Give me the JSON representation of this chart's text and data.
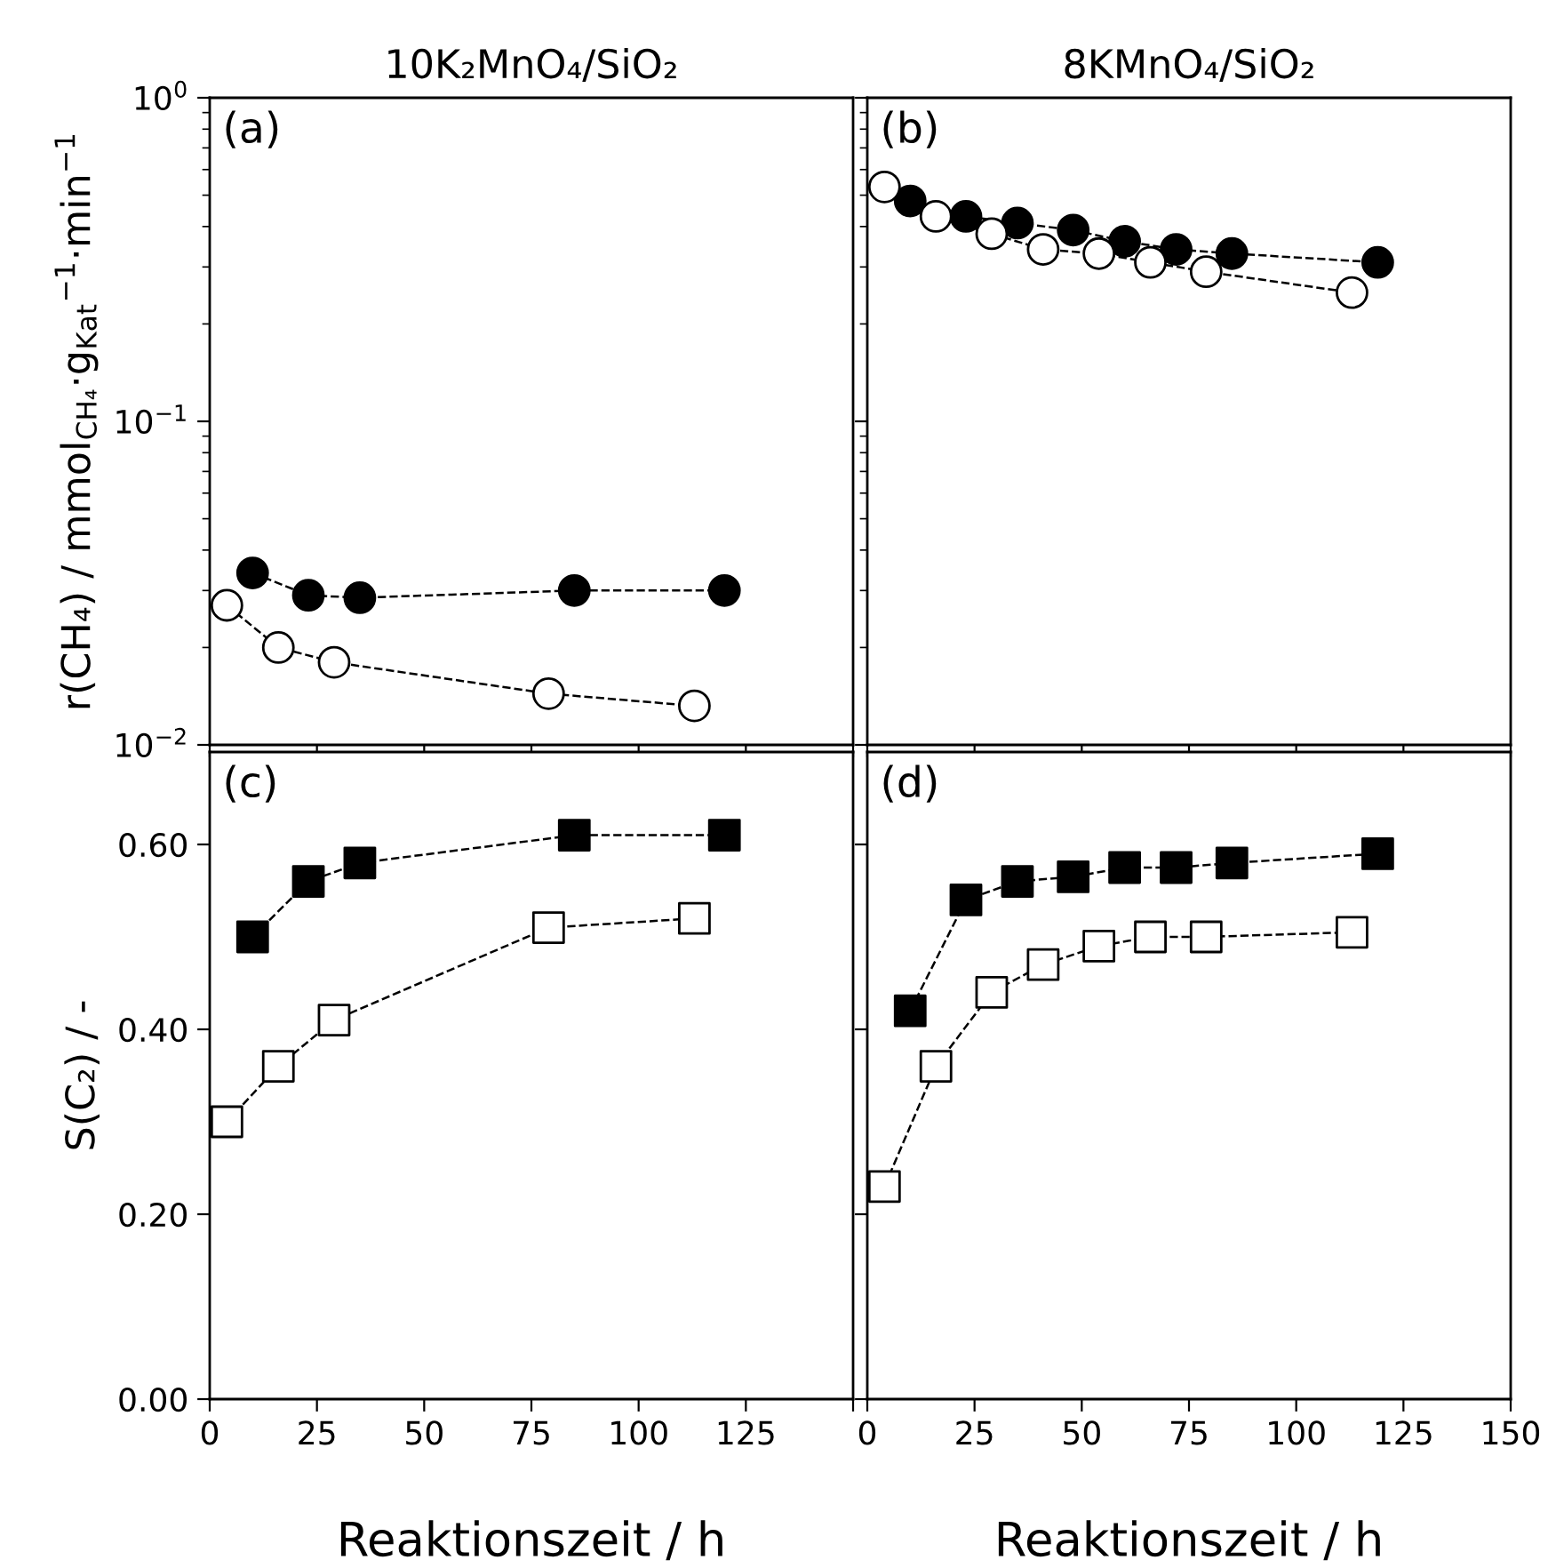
{
  "chart_data": [
    {
      "type": "line",
      "title": "10K₂MnO₄/SiO₂",
      "ylabel": "r(CH₄) / mmol$_{CH₄}$·g$_{Kat}$$^{−1}$·min$^{−1}$",
      "annotations": [
        "(a)"
      ],
      "log": "y",
      "xlim": [
        0,
        150
      ],
      "xticks": [
        {
          "value": 0,
          "label": null
        },
        {
          "value": 25,
          "label": null
        },
        {
          "value": 50,
          "label": null
        },
        {
          "value": 75,
          "label": null
        },
        {
          "value": 100,
          "label": null
        },
        {
          "value": 125,
          "label": null
        },
        {
          "value": 150,
          "label": null
        }
      ],
      "ylim": [
        0.01,
        1
      ],
      "yticks": [
        {
          "value": 0.01,
          "label": "10$^{−2}$"
        },
        {
          "value": 0.1,
          "label": "10$^{−1}$"
        },
        {
          "value": 1,
          "label": "10$^{0}$"
        }
      ],
      "tick_labels": "y",
      "marker": "circle",
      "line_style": "dashed",
      "grid": false,
      "series": [
        {
          "color": "#000000",
          "x": [
            10,
            23,
            35,
            85,
            120
          ],
          "values": [
            0.034,
            0.029,
            0.0285,
            0.03,
            0.03
          ]
        },
        {
          "color": "#ffffff",
          "x": [
            4,
            16,
            29,
            79,
            113
          ],
          "values": [
            0.027,
            0.02,
            0.018,
            0.0144,
            0.0132
          ]
        }
      ]
    },
    {
      "type": "line",
      "title": "8KMnO₄/SiO₂",
      "annotations": [
        "(b)"
      ],
      "log": "y",
      "xlim": [
        0,
        150
      ],
      "xticks": [
        {
          "value": 0,
          "label": null
        },
        {
          "value": 25,
          "label": null
        },
        {
          "value": 50,
          "label": null
        },
        {
          "value": 75,
          "label": null
        },
        {
          "value": 100,
          "label": null
        },
        {
          "value": 125,
          "label": null
        },
        {
          "value": 150,
          "label": null
        }
      ],
      "ylim": [
        0.01,
        1
      ],
      "yticks": [
        {
          "value": 0.01,
          "label": null
        },
        {
          "value": 0.1,
          "label": null
        },
        {
          "value": 1,
          "label": null
        }
      ],
      "tick_labels": false,
      "marker": "circle",
      "line_style": "dashed",
      "grid": false,
      "series": [
        {
          "color": "#000000",
          "x": [
            10,
            23,
            35,
            48,
            60,
            72,
            85,
            119
          ],
          "values": [
            0.48,
            0.43,
            0.41,
            0.39,
            0.36,
            0.34,
            0.33,
            0.31
          ]
        },
        {
          "color": "#ffffff",
          "x": [
            4,
            16,
            29,
            41,
            54,
            66,
            79,
            113
          ],
          "values": [
            0.53,
            0.43,
            0.38,
            0.34,
            0.33,
            0.31,
            0.29,
            0.25
          ]
        }
      ]
    },
    {
      "type": "line",
      "ylabel": "S(C₂) / -",
      "xlabel": "Reaktionszeit / h",
      "annotations": [
        "(c)"
      ],
      "xlim": [
        0,
        150
      ],
      "xticks": [
        0,
        25,
        50,
        75,
        100,
        125,
        {
          "value": 150,
          "label": null
        }
      ],
      "ylim": [
        0,
        0.7
      ],
      "yticks": [
        {
          "value": 0,
          "label": "0.00"
        },
        {
          "value": 0.2,
          "label": "0.20"
        },
        {
          "value": 0.4,
          "label": "0.40"
        },
        {
          "value": 0.6,
          "label": "0.60"
        }
      ],
      "marker": "square",
      "line_style": "dashed",
      "grid": false,
      "series": [
        {
          "color": "#000000",
          "x": [
            10,
            23,
            35,
            85,
            120
          ],
          "values": [
            0.5,
            0.56,
            0.58,
            0.61,
            0.61
          ]
        },
        {
          "color": "#ffffff",
          "x": [
            4,
            16,
            29,
            79,
            113
          ],
          "values": [
            0.3,
            0.36,
            0.41,
            0.51,
            0.52
          ]
        }
      ]
    },
    {
      "type": "line",
      "xlabel": "Reaktionszeit / h",
      "annotations": [
        "(d)"
      ],
      "xlim": [
        0,
        150
      ],
      "xticks": [
        0,
        25,
        50,
        75,
        100,
        125,
        150
      ],
      "ylim": [
        0,
        0.7
      ],
      "yticks": [
        {
          "value": 0,
          "label": null
        },
        {
          "value": 0.2,
          "label": null
        },
        {
          "value": 0.4,
          "label": null
        },
        {
          "value": 0.6,
          "label": null
        }
      ],
      "tick_labels": "x",
      "marker": "square",
      "line_style": "dashed",
      "grid": false,
      "series": [
        {
          "color": "#000000",
          "x": [
            10,
            23,
            35,
            48,
            60,
            72,
            85,
            119
          ],
          "values": [
            0.42,
            0.54,
            0.56,
            0.565,
            0.575,
            0.575,
            0.58,
            0.59
          ]
        },
        {
          "color": "#ffffff",
          "x": [
            4,
            16,
            29,
            41,
            54,
            66,
            79,
            113
          ],
          "values": [
            0.23,
            0.36,
            0.44,
            0.47,
            0.49,
            0.5,
            0.5,
            0.505
          ]
        }
      ]
    }
  ]
}
